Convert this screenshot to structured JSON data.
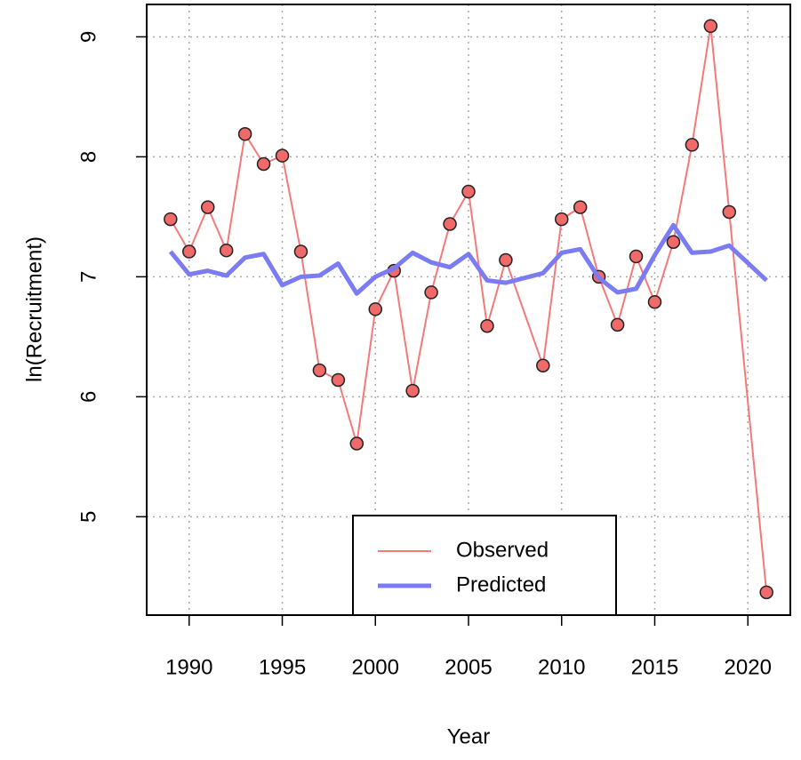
{
  "chart_data": {
    "type": "line",
    "x_label": "Year",
    "y_label": "ln(Recruitment)",
    "x": [
      1989,
      1990,
      1991,
      1992,
      1993,
      1994,
      1995,
      1996,
      1997,
      1998,
      1999,
      2000,
      2001,
      2002,
      2003,
      2004,
      2005,
      2006,
      2007,
      2009,
      2010,
      2011,
      2012,
      2013,
      2014,
      2015,
      2016,
      2017,
      2018,
      2019,
      2021
    ],
    "series": [
      {
        "name": "Observed",
        "color": "#f47a7a",
        "markers": true,
        "values": [
          7.48,
          7.21,
          7.58,
          7.22,
          8.19,
          7.94,
          8.01,
          7.21,
          6.22,
          6.14,
          5.61,
          6.73,
          7.05,
          6.05,
          6.87,
          7.44,
          7.71,
          6.59,
          7.14,
          6.26,
          7.48,
          7.58,
          7.0,
          6.6,
          7.17,
          6.79,
          7.29,
          8.1,
          9.09,
          7.54,
          4.37
        ]
      },
      {
        "name": "Predicted",
        "color": "#7b7bf3",
        "markers": false,
        "values": [
          7.21,
          7.02,
          7.05,
          7.01,
          7.16,
          7.19,
          6.93,
          7.0,
          7.01,
          7.11,
          6.86,
          7.0,
          7.07,
          7.2,
          7.12,
          7.08,
          7.19,
          6.97,
          6.95,
          7.03,
          7.2,
          7.23,
          6.99,
          6.87,
          6.9,
          7.18,
          7.43,
          7.2,
          7.21,
          7.26,
          6.97
        ]
      }
    ],
    "xlim": [
      1987.72,
      2022.28
    ],
    "xticks": [
      1990,
      1995,
      2000,
      2005,
      2010,
      2015,
      2020
    ],
    "ylim": [
      4.18,
      9.27
    ],
    "yticks": [
      5,
      6,
      7,
      8,
      9
    ],
    "grid": true,
    "legend": "bottom"
  }
}
